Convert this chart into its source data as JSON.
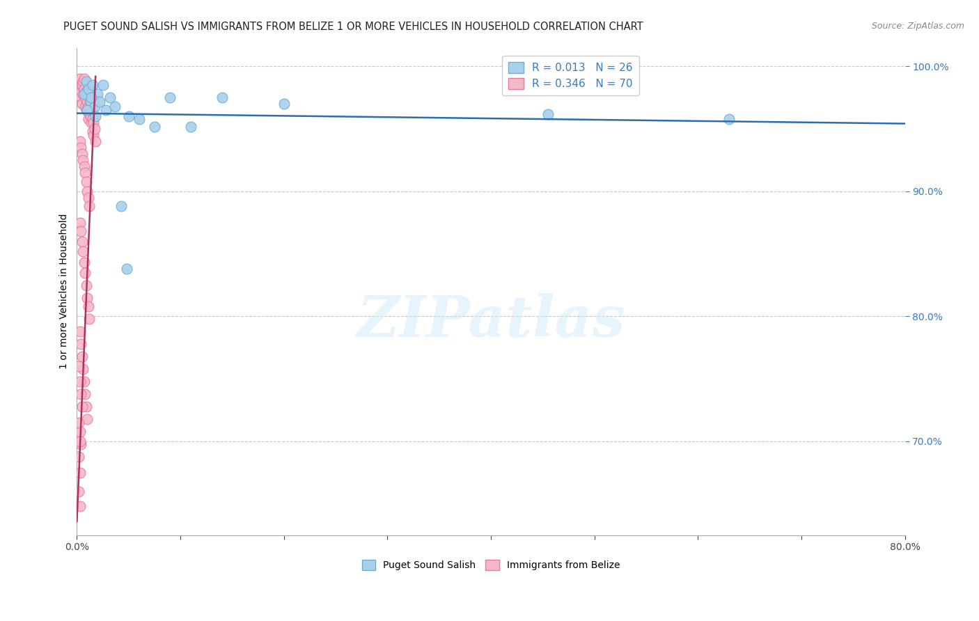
{
  "title": "PUGET SOUND SALISH VS IMMIGRANTS FROM BELIZE 1 OR MORE VEHICLES IN HOUSEHOLD CORRELATION CHART",
  "source": "Source: ZipAtlas.com",
  "ylabel": "1 or more Vehicles in Household",
  "xlabel": "",
  "xlim": [
    0.0,
    0.8
  ],
  "ylim": [
    0.625,
    1.015
  ],
  "yticks": [
    0.7,
    0.8,
    0.9,
    1.0
  ],
  "ytick_labels": [
    "70.0%",
    "80.0%",
    "90.0%",
    "100.0%"
  ],
  "xticks": [
    0.0,
    0.1,
    0.2,
    0.3,
    0.4,
    0.5,
    0.6,
    0.7,
    0.8
  ],
  "xtick_labels": [
    "0.0%",
    "",
    "",
    "",
    "",
    "",
    "",
    "",
    "80.0%"
  ],
  "blue_R": 0.013,
  "blue_N": 26,
  "pink_R": 0.346,
  "pink_N": 70,
  "blue_color": "#a8d0eb",
  "pink_color": "#f5b8c9",
  "blue_edge": "#6aaed6",
  "pink_edge": "#e8799f",
  "trend_blue_color": "#2a6db5",
  "trend_pink_color": "#b03060",
  "watermark_text": "ZIPatlas",
  "background_color": "#ffffff",
  "grid_color": "#c8c8c8",
  "title_fontsize": 10.5,
  "axis_label_fontsize": 10,
  "tick_fontsize": 10,
  "legend_fontsize": 11,
  "blue_points_x": [
    0.007,
    0.009,
    0.011,
    0.013,
    0.015,
    0.017,
    0.02,
    0.022,
    0.025,
    0.028,
    0.032,
    0.037,
    0.043,
    0.05,
    0.06,
    0.075,
    0.09,
    0.11,
    0.14,
    0.2,
    0.455,
    0.63,
    0.01,
    0.014,
    0.018,
    0.048
  ],
  "blue_points_y": [
    0.978,
    0.988,
    0.982,
    0.972,
    0.985,
    0.968,
    0.978,
    0.972,
    0.985,
    0.965,
    0.975,
    0.968,
    0.888,
    0.96,
    0.958,
    0.952,
    0.975,
    0.952,
    0.975,
    0.97,
    0.962,
    0.958,
    0.965,
    0.975,
    0.96,
    0.838
  ],
  "pink_points_x": [
    0.002,
    0.003,
    0.004,
    0.004,
    0.005,
    0.005,
    0.006,
    0.006,
    0.007,
    0.007,
    0.008,
    0.008,
    0.009,
    0.009,
    0.01,
    0.01,
    0.011,
    0.011,
    0.012,
    0.012,
    0.013,
    0.013,
    0.014,
    0.014,
    0.015,
    0.015,
    0.016,
    0.016,
    0.017,
    0.018,
    0.003,
    0.004,
    0.005,
    0.006,
    0.007,
    0.008,
    0.009,
    0.01,
    0.011,
    0.012,
    0.003,
    0.004,
    0.005,
    0.006,
    0.007,
    0.008,
    0.009,
    0.01,
    0.011,
    0.012,
    0.003,
    0.004,
    0.005,
    0.006,
    0.007,
    0.008,
    0.009,
    0.01,
    0.003,
    0.004,
    0.002,
    0.003,
    0.004,
    0.005,
    0.002,
    0.003,
    0.002,
    0.003,
    0.002,
    0.003
  ],
  "pink_points_y": [
    0.98,
    0.99,
    0.985,
    0.975,
    0.985,
    0.97,
    0.988,
    0.978,
    0.99,
    0.982,
    0.975,
    0.968,
    0.98,
    0.965,
    0.978,
    0.972,
    0.968,
    0.958,
    0.975,
    0.962,
    0.97,
    0.96,
    0.965,
    0.955,
    0.958,
    0.948,
    0.955,
    0.945,
    0.95,
    0.94,
    0.94,
    0.935,
    0.93,
    0.925,
    0.92,
    0.915,
    0.908,
    0.9,
    0.895,
    0.888,
    0.875,
    0.868,
    0.86,
    0.852,
    0.843,
    0.835,
    0.825,
    0.815,
    0.808,
    0.798,
    0.788,
    0.778,
    0.768,
    0.758,
    0.748,
    0.738,
    0.728,
    0.718,
    0.708,
    0.698,
    0.76,
    0.748,
    0.738,
    0.728,
    0.715,
    0.7,
    0.688,
    0.675,
    0.66,
    0.648
  ]
}
